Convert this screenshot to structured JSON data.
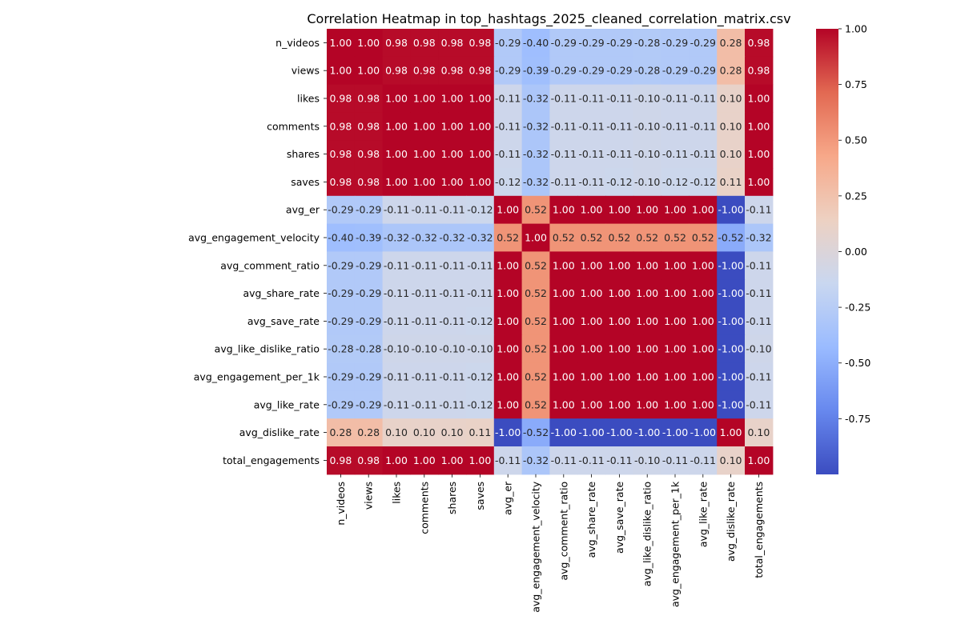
{
  "chart_data": {
    "type": "heatmap",
    "title": "Correlation Heatmap in top_hashtags_2025_cleaned_correlation_matrix.csv",
    "labels": [
      "n_videos",
      "views",
      "likes",
      "comments",
      "shares",
      "saves",
      "avg_er",
      "avg_engagement_velocity",
      "avg_comment_ratio",
      "avg_share_rate",
      "avg_save_rate",
      "avg_like_dislike_ratio",
      "avg_engagement_per_1k",
      "avg_like_rate",
      "avg_dislike_rate",
      "total_engagements"
    ],
    "matrix": [
      [
        1.0,
        1.0,
        0.98,
        0.98,
        0.98,
        0.98,
        -0.29,
        -0.4,
        -0.29,
        -0.29,
        -0.29,
        -0.28,
        -0.29,
        -0.29,
        0.28,
        0.98
      ],
      [
        1.0,
        1.0,
        0.98,
        0.98,
        0.98,
        0.98,
        -0.29,
        -0.39,
        -0.29,
        -0.29,
        -0.29,
        -0.28,
        -0.29,
        -0.29,
        0.28,
        0.98
      ],
      [
        0.98,
        0.98,
        1.0,
        1.0,
        1.0,
        1.0,
        -0.11,
        -0.32,
        -0.11,
        -0.11,
        -0.11,
        -0.1,
        -0.11,
        -0.11,
        0.1,
        1.0
      ],
      [
        0.98,
        0.98,
        1.0,
        1.0,
        1.0,
        1.0,
        -0.11,
        -0.32,
        -0.11,
        -0.11,
        -0.11,
        -0.1,
        -0.11,
        -0.11,
        0.1,
        1.0
      ],
      [
        0.98,
        0.98,
        1.0,
        1.0,
        1.0,
        1.0,
        -0.11,
        -0.32,
        -0.11,
        -0.11,
        -0.11,
        -0.1,
        -0.11,
        -0.11,
        0.1,
        1.0
      ],
      [
        0.98,
        0.98,
        1.0,
        1.0,
        1.0,
        1.0,
        -0.12,
        -0.32,
        -0.11,
        -0.11,
        -0.12,
        -0.1,
        -0.12,
        -0.12,
        0.11,
        1.0
      ],
      [
        -0.29,
        -0.29,
        -0.11,
        -0.11,
        -0.11,
        -0.12,
        1.0,
        0.52,
        1.0,
        1.0,
        1.0,
        1.0,
        1.0,
        1.0,
        -1.0,
        -0.11
      ],
      [
        -0.4,
        -0.39,
        -0.32,
        -0.32,
        -0.32,
        -0.32,
        0.52,
        1.0,
        0.52,
        0.52,
        0.52,
        0.52,
        0.52,
        0.52,
        -0.52,
        -0.32
      ],
      [
        -0.29,
        -0.29,
        -0.11,
        -0.11,
        -0.11,
        -0.11,
        1.0,
        0.52,
        1.0,
        1.0,
        1.0,
        1.0,
        1.0,
        1.0,
        -1.0,
        -0.11
      ],
      [
        -0.29,
        -0.29,
        -0.11,
        -0.11,
        -0.11,
        -0.11,
        1.0,
        0.52,
        1.0,
        1.0,
        1.0,
        1.0,
        1.0,
        1.0,
        -1.0,
        -0.11
      ],
      [
        -0.29,
        -0.29,
        -0.11,
        -0.11,
        -0.11,
        -0.12,
        1.0,
        0.52,
        1.0,
        1.0,
        1.0,
        1.0,
        1.0,
        1.0,
        -1.0,
        -0.11
      ],
      [
        -0.28,
        -0.28,
        -0.1,
        -0.1,
        -0.1,
        -0.1,
        1.0,
        0.52,
        1.0,
        1.0,
        1.0,
        1.0,
        1.0,
        1.0,
        -1.0,
        -0.1
      ],
      [
        -0.29,
        -0.29,
        -0.11,
        -0.11,
        -0.11,
        -0.12,
        1.0,
        0.52,
        1.0,
        1.0,
        1.0,
        1.0,
        1.0,
        1.0,
        -1.0,
        -0.11
      ],
      [
        -0.29,
        -0.29,
        -0.11,
        -0.11,
        -0.11,
        -0.12,
        1.0,
        0.52,
        1.0,
        1.0,
        1.0,
        1.0,
        1.0,
        1.0,
        -1.0,
        -0.11
      ],
      [
        0.28,
        0.28,
        0.1,
        0.1,
        0.1,
        0.11,
        -1.0,
        -0.52,
        -1.0,
        -1.0,
        -1.0,
        -1.0,
        -1.0,
        -1.0,
        1.0,
        0.1
      ],
      [
        0.98,
        0.98,
        1.0,
        1.0,
        1.0,
        1.0,
        -0.11,
        -0.32,
        -0.11,
        -0.11,
        -0.11,
        -0.1,
        -0.11,
        -0.11,
        0.1,
        1.0
      ]
    ],
    "value_format": "2 decimals",
    "colormap": "coolwarm",
    "colormap_stops": [
      "#3b4cc0",
      "#6788ee",
      "#9abbff",
      "#c9d7f0",
      "#edd1c2",
      "#f7a889",
      "#e26952",
      "#b40426"
    ],
    "vmin": -1.0,
    "vmax": 1.0,
    "colorbar_ticks": [
      1.0,
      0.75,
      0.5,
      0.25,
      0.0,
      -0.25,
      -0.5,
      -0.75
    ],
    "xlabel": "",
    "ylabel": "",
    "grid": false
  }
}
